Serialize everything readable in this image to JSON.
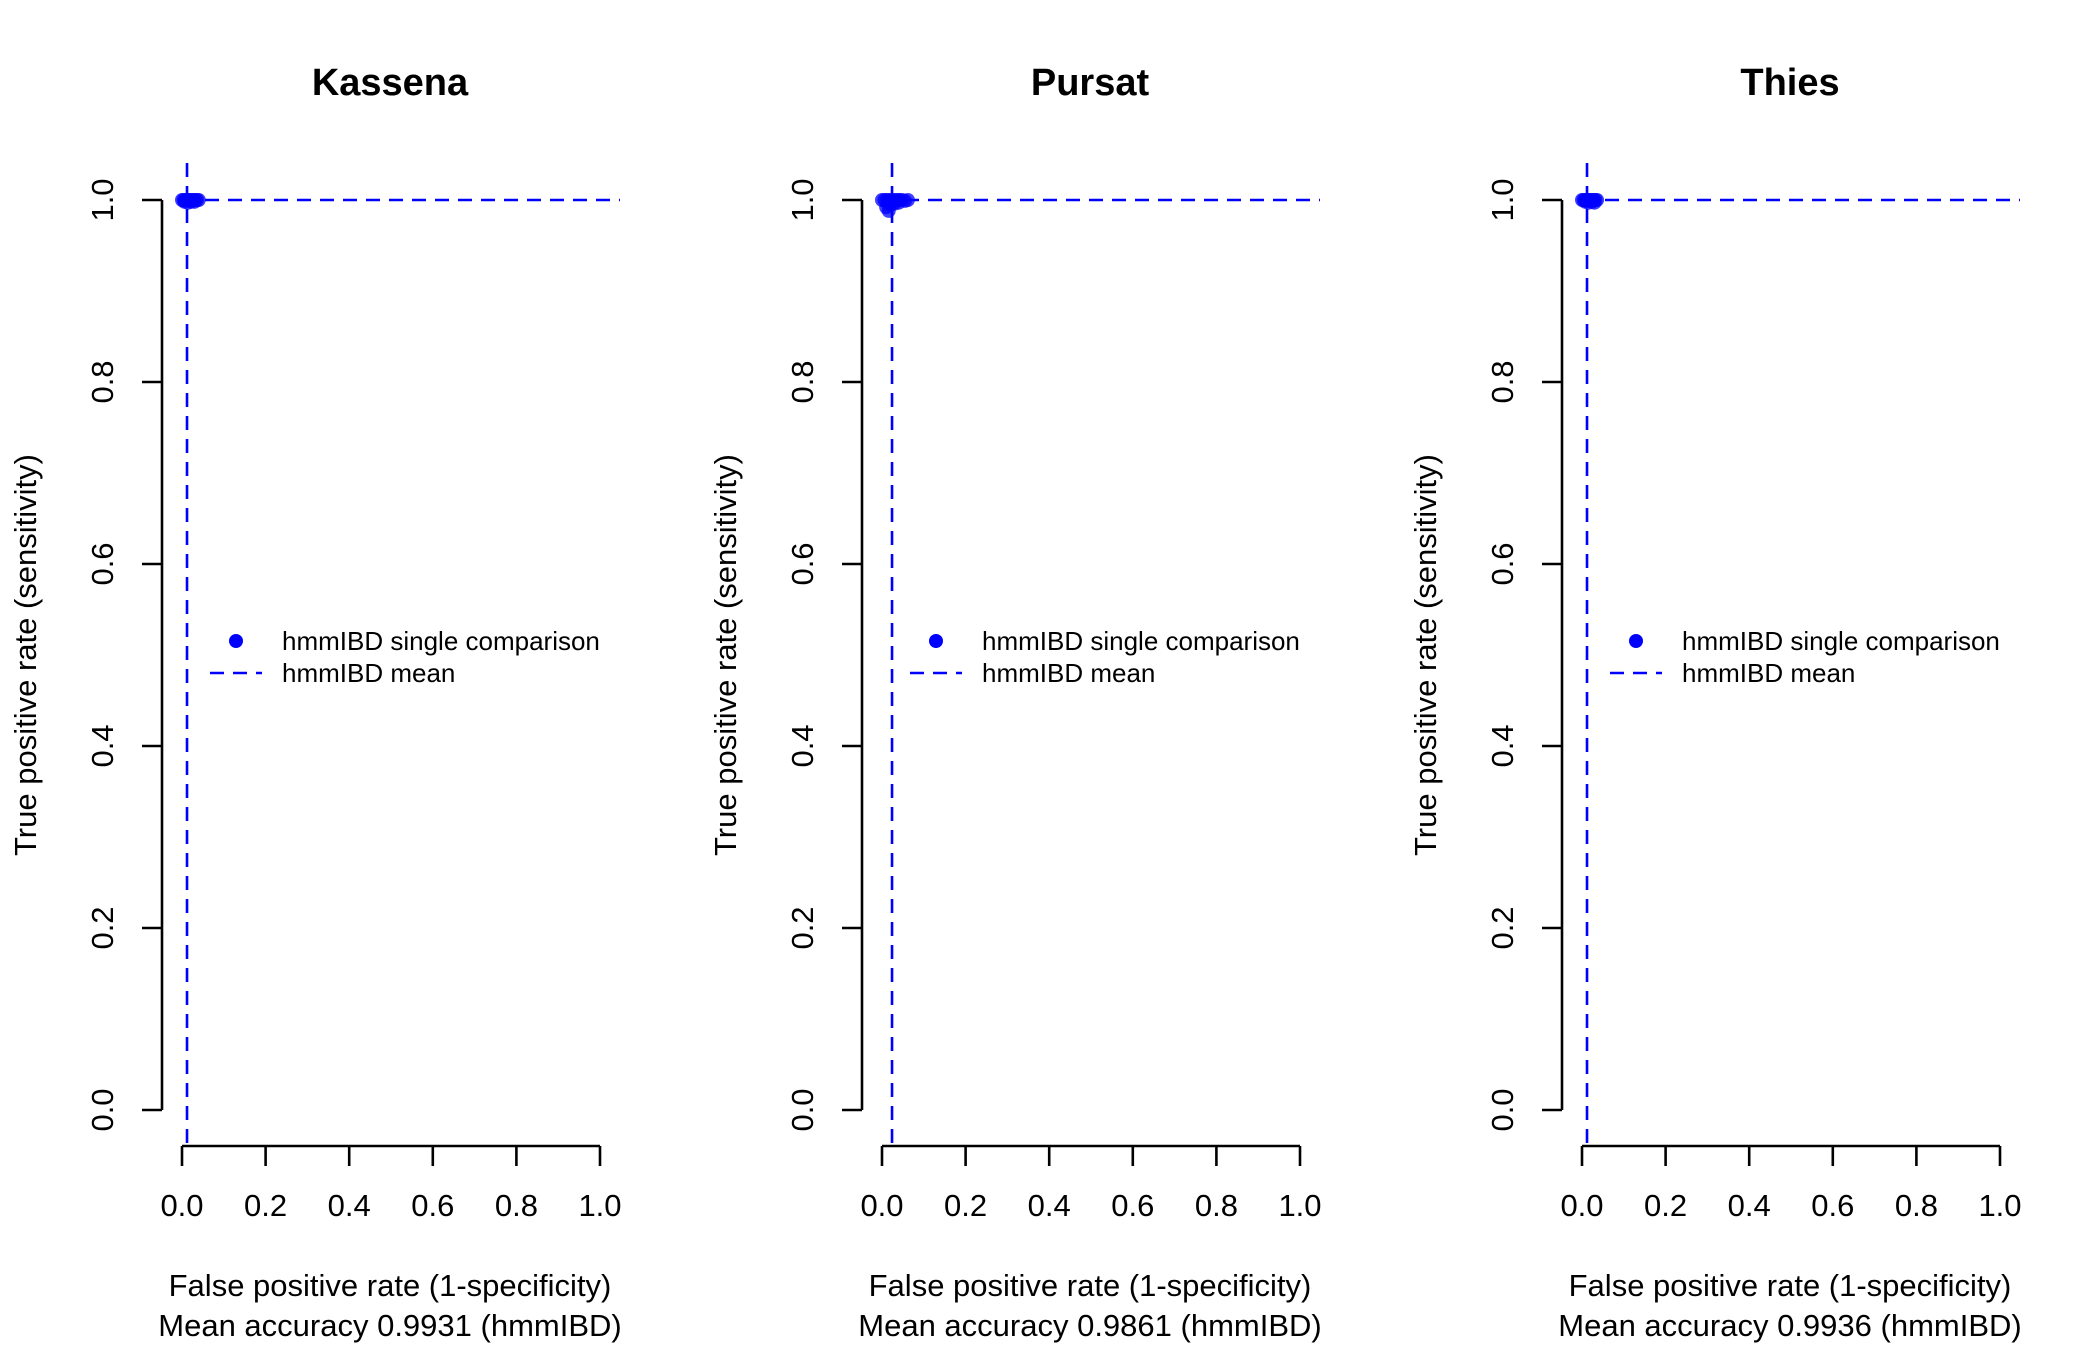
{
  "chart_data": [
    {
      "type": "scatter",
      "title": "Kassena",
      "xlabel": "False positive rate (1-specificity)",
      "subtitle": "Mean accuracy 0.9931 (hmmIBD)",
      "ylabel": "True positive rate (sensitivity)",
      "xlim": [
        0,
        1
      ],
      "ylim": [
        0,
        1
      ],
      "x_ticks": [
        "0.0",
        "0.2",
        "0.4",
        "0.6",
        "0.8",
        "1.0"
      ],
      "y_ticks": [
        "0.0",
        "0.2",
        "0.4",
        "0.6",
        "0.8",
        "1.0"
      ],
      "grid": false,
      "legend_position": "center",
      "legend": {
        "points": "hmmIBD single comparison",
        "mean": "hmmIBD mean"
      },
      "series": [
        {
          "name": "hmmIBD single comparison",
          "color": "#0000ff",
          "points": [
            {
              "x": 0.0,
              "y": 1.0
            },
            {
              "x": 0.004,
              "y": 1.0
            },
            {
              "x": 0.008,
              "y": 1.0
            },
            {
              "x": 0.012,
              "y": 1.0
            },
            {
              "x": 0.016,
              "y": 1.0
            },
            {
              "x": 0.02,
              "y": 1.0
            },
            {
              "x": 0.024,
              "y": 1.0
            },
            {
              "x": 0.028,
              "y": 1.0
            },
            {
              "x": 0.032,
              "y": 1.0
            },
            {
              "x": 0.036,
              "y": 1.0
            },
            {
              "x": 0.04,
              "y": 1.0
            },
            {
              "x": 0.006,
              "y": 0.998
            },
            {
              "x": 0.014,
              "y": 0.997
            },
            {
              "x": 0.022,
              "y": 0.998
            },
            {
              "x": 0.03,
              "y": 0.998
            }
          ]
        }
      ],
      "mean": {
        "name": "hmmIBD mean",
        "x": 0.012,
        "y": 1.0,
        "color": "#0000ff"
      }
    },
    {
      "type": "scatter",
      "title": "Pursat",
      "xlabel": "False positive rate (1-specificity)",
      "subtitle": "Mean accuracy 0.9861 (hmmIBD)",
      "ylabel": "True positive rate (sensitivity)",
      "xlim": [
        0,
        1
      ],
      "ylim": [
        0,
        1
      ],
      "x_ticks": [
        "0.0",
        "0.2",
        "0.4",
        "0.6",
        "0.8",
        "1.0"
      ],
      "y_ticks": [
        "0.0",
        "0.2",
        "0.4",
        "0.6",
        "0.8",
        "1.0"
      ],
      "grid": false,
      "legend_position": "center",
      "legend": {
        "points": "hmmIBD single comparison",
        "mean": "hmmIBD mean"
      },
      "series": [
        {
          "name": "hmmIBD single comparison",
          "color": "#0000ff",
          "points": [
            {
              "x": 0.0,
              "y": 1.0
            },
            {
              "x": 0.006,
              "y": 1.0
            },
            {
              "x": 0.012,
              "y": 1.0
            },
            {
              "x": 0.018,
              "y": 1.0
            },
            {
              "x": 0.024,
              "y": 1.0
            },
            {
              "x": 0.03,
              "y": 1.0
            },
            {
              "x": 0.036,
              "y": 1.0
            },
            {
              "x": 0.042,
              "y": 1.0
            },
            {
              "x": 0.048,
              "y": 1.0
            },
            {
              "x": 0.055,
              "y": 0.999
            },
            {
              "x": 0.062,
              "y": 1.0
            },
            {
              "x": 0.014,
              "y": 0.996
            },
            {
              "x": 0.022,
              "y": 0.995
            },
            {
              "x": 0.03,
              "y": 0.996
            },
            {
              "x": 0.01,
              "y": 0.992
            },
            {
              "x": 0.016,
              "y": 0.988
            },
            {
              "x": 0.04,
              "y": 0.997
            }
          ]
        }
      ],
      "mean": {
        "name": "hmmIBD mean",
        "x": 0.024,
        "y": 1.0,
        "color": "#0000ff"
      }
    },
    {
      "type": "scatter",
      "title": "Thies",
      "xlabel": "False positive rate (1-specificity)",
      "subtitle": "Mean accuracy 0.9936 (hmmIBD)",
      "ylabel": "True positive rate (sensitivity)",
      "xlim": [
        0,
        1
      ],
      "ylim": [
        0,
        1
      ],
      "x_ticks": [
        "0.0",
        "0.2",
        "0.4",
        "0.6",
        "0.8",
        "1.0"
      ],
      "y_ticks": [
        "0.0",
        "0.2",
        "0.4",
        "0.6",
        "0.8",
        "1.0"
      ],
      "grid": false,
      "legend_position": "center",
      "legend": {
        "points": "hmmIBD single comparison",
        "mean": "hmmIBD mean"
      },
      "series": [
        {
          "name": "hmmIBD single comparison",
          "color": "#0000ff",
          "points": [
            {
              "x": 0.0,
              "y": 1.0
            },
            {
              "x": 0.004,
              "y": 1.0
            },
            {
              "x": 0.008,
              "y": 1.0
            },
            {
              "x": 0.012,
              "y": 1.0
            },
            {
              "x": 0.016,
              "y": 1.0
            },
            {
              "x": 0.02,
              "y": 1.0
            },
            {
              "x": 0.024,
              "y": 1.0
            },
            {
              "x": 0.028,
              "y": 1.0
            },
            {
              "x": 0.032,
              "y": 1.0
            },
            {
              "x": 0.036,
              "y": 1.0
            },
            {
              "x": 0.008,
              "y": 0.998
            },
            {
              "x": 0.016,
              "y": 0.997
            },
            {
              "x": 0.024,
              "y": 0.998
            },
            {
              "x": 0.03,
              "y": 0.997
            }
          ]
        }
      ],
      "mean": {
        "name": "hmmIBD mean",
        "x": 0.012,
        "y": 1.0,
        "color": "#0000ff"
      }
    }
  ]
}
